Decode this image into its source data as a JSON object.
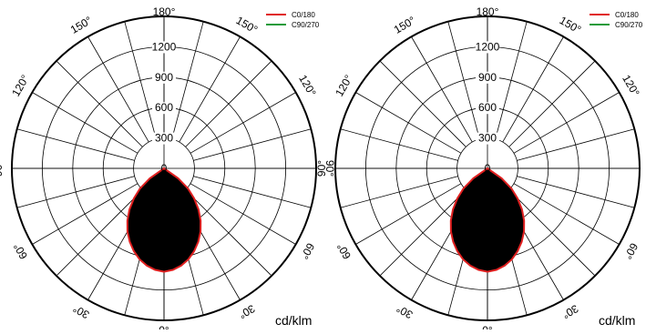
{
  "chart_data": [
    {
      "type": "polar",
      "unit_label": "cd/klm",
      "radial_ticks": [
        "0",
        "300",
        "600",
        "900",
        "1200"
      ],
      "r_max": 1500,
      "angle_labels": [
        {
          "deg": 180,
          "text": "180°"
        },
        {
          "deg": 150,
          "text": "150°"
        },
        {
          "deg": 120,
          "text": "120°"
        },
        {
          "deg": 90,
          "text": "90°"
        },
        {
          "deg": 60,
          "text": "60°"
        },
        {
          "deg": 30,
          "text": "30°"
        },
        {
          "deg": 0,
          "text": "0°"
        }
      ],
      "legend": [
        {
          "name": "C0/180",
          "color": "#e02020"
        },
        {
          "name": "C90/270",
          "color": "#1a9b3a"
        }
      ],
      "series": [
        {
          "name": "C0/180",
          "color": "#e02020",
          "angles": [
            0,
            5,
            10,
            15,
            20,
            25,
            30,
            35,
            40,
            45,
            50,
            55,
            60
          ],
          "values": [
            1020,
            1005,
            975,
            930,
            870,
            800,
            720,
            630,
            530,
            420,
            310,
            170,
            0
          ]
        },
        {
          "name": "C90/270",
          "color": "#1a9b3a",
          "angles": [
            0,
            5,
            10,
            15,
            20,
            25,
            30,
            35,
            40,
            45,
            50,
            55,
            60
          ],
          "values": [
            1020,
            1005,
            975,
            930,
            870,
            800,
            720,
            630,
            530,
            420,
            310,
            170,
            0
          ]
        }
      ]
    },
    {
      "type": "polar",
      "unit_label": "cd/klm",
      "radial_ticks": [
        "0",
        "300",
        "600",
        "900",
        "1200"
      ],
      "r_max": 1500,
      "angle_labels": [
        {
          "deg": 180,
          "text": "180°"
        },
        {
          "deg": 150,
          "text": "150°"
        },
        {
          "deg": 120,
          "text": "120°"
        },
        {
          "deg": 90,
          "text": "90°"
        },
        {
          "deg": 60,
          "text": "60°"
        },
        {
          "deg": 30,
          "text": "30°"
        },
        {
          "deg": 0,
          "text": "0°"
        }
      ],
      "legend": [
        {
          "name": "C0/180",
          "color": "#e02020"
        },
        {
          "name": "C90/270",
          "color": "#1a9b3a"
        }
      ],
      "series": [
        {
          "name": "C0/180",
          "color": "#e02020",
          "angles": [
            0,
            5,
            10,
            15,
            20,
            25,
            30,
            35,
            40,
            45,
            50,
            55,
            60
          ],
          "values": [
            1020,
            1005,
            975,
            930,
            870,
            800,
            720,
            630,
            530,
            420,
            310,
            170,
            0
          ]
        },
        {
          "name": "C90/270",
          "color": "#1a9b3a",
          "angles": [
            0,
            5,
            10,
            15,
            20,
            25,
            30,
            35,
            40,
            45,
            50,
            55,
            60
          ],
          "values": [
            1020,
            1005,
            975,
            930,
            870,
            800,
            720,
            630,
            530,
            420,
            310,
            170,
            0
          ]
        }
      ]
    }
  ]
}
